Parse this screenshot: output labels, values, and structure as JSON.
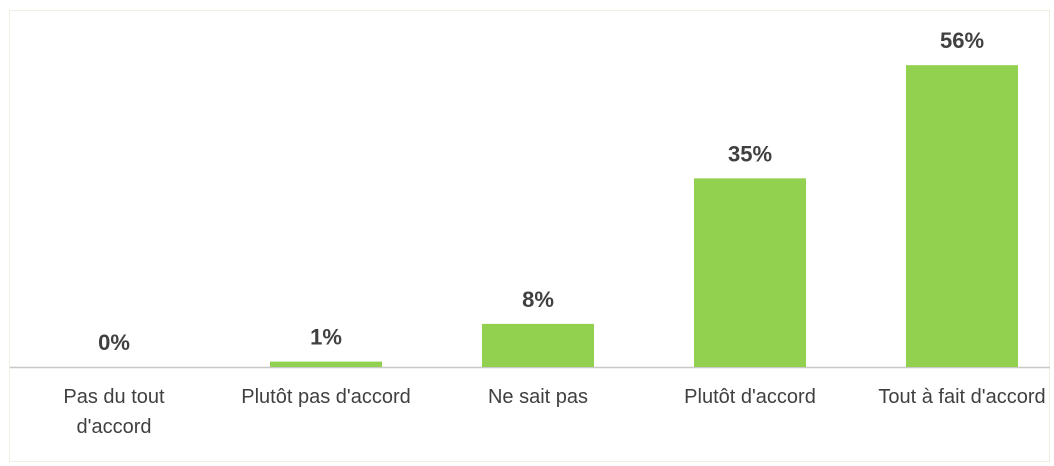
{
  "chart_data": {
    "type": "bar",
    "categories": [
      "Pas du tout d'accord",
      "Plutôt pas d'accord",
      "Ne sait pas",
      "Plutôt d'accord",
      "Tout à fait d'accord"
    ],
    "values": [
      0,
      1,
      8,
      35,
      56
    ],
    "value_labels": [
      "0%",
      "1%",
      "8%",
      "35%",
      "56%"
    ],
    "color": "#92d050"
  }
}
